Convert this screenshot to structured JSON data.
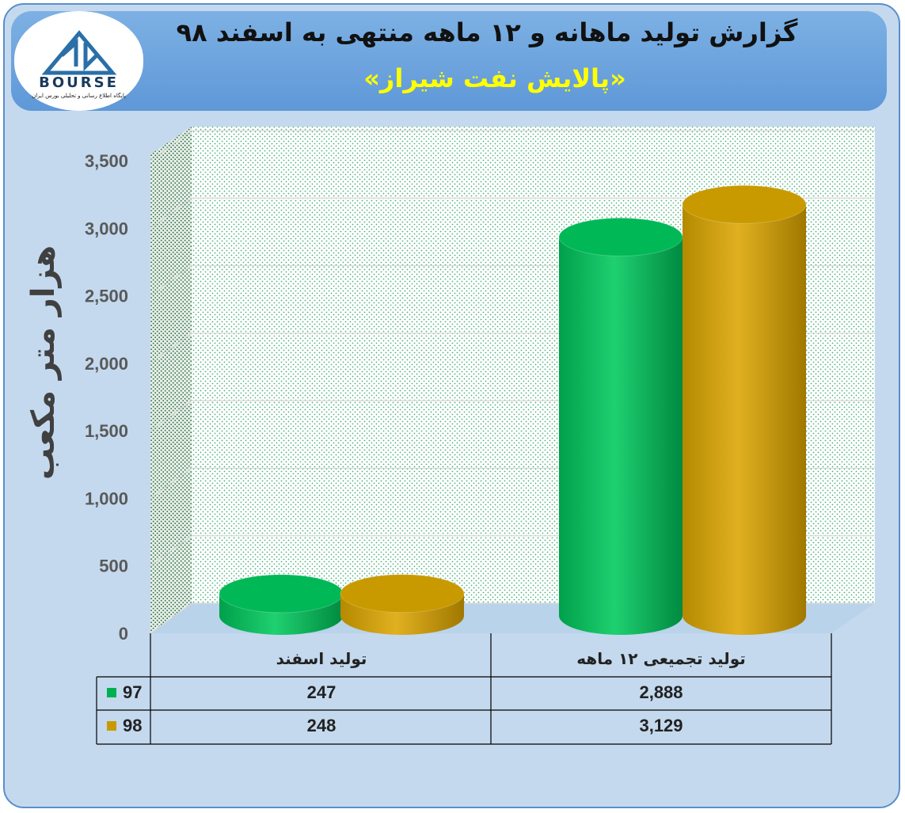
{
  "header": {
    "title": "گزارش تولید ماهانه و ۱۲ ماهه منتهی به اسفند ۹۸",
    "subtitle": "«پالایش نفت شیراز»",
    "logo_text": "BOURSE",
    "logo_subtitle": "پایگاه اطلاع رسانی و تحلیلی بورس ایران"
  },
  "colors": {
    "series97": "#00b050",
    "series98": "#c89a00",
    "frame": "#c4d9ee",
    "banner": "#6fa5dd",
    "subtitle": "#ffff00"
  },
  "chart_data": {
    "type": "bar",
    "style": "3d-cylinder",
    "categories": [
      "تولید اسفند",
      "تولید تجمیعی ۱۲ ماهه"
    ],
    "series": [
      {
        "name": "97",
        "values": [
          247,
          2888
        ]
      },
      {
        "name": "98",
        "values": [
          248,
          3129
        ]
      }
    ],
    "ylabel": "هزار متر مکعب",
    "ylim": [
      0,
      3500
    ],
    "yticks": [
      "0",
      "500",
      "1,000",
      "1,500",
      "2,000",
      "2,500",
      "3,000",
      "3,500"
    ],
    "grid": true,
    "legend": "data-table"
  },
  "table": {
    "rows": [
      {
        "legend": "97",
        "values": [
          "247",
          "2,888"
        ]
      },
      {
        "legend": "98",
        "values": [
          "248",
          "3,129"
        ]
      }
    ]
  }
}
